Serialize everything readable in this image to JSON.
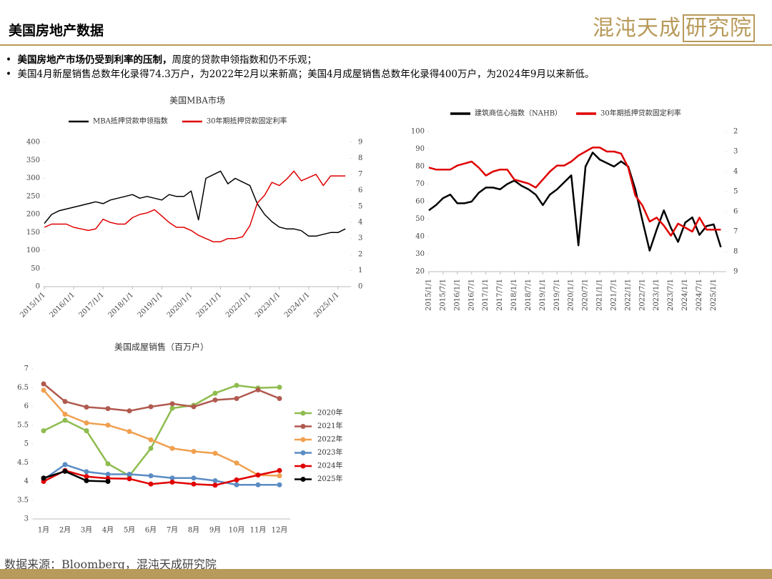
{
  "header": {
    "title": "美国房地产数据",
    "logo": "混沌天成",
    "logo_box": "研究院"
  },
  "bullets": [
    {
      "bold": "美国房地产市场仍受到利率的压制，",
      "text": "周度的贷款申领指数和仍不乐观；"
    },
    {
      "bold": "",
      "text": "美国4月新屋销售总数年化录得74.3万户，为2022年2月以来新高；美国4月成屋销售总数年化录得400万户，为2024年9月以来新低。"
    }
  ],
  "source": "数据来源：Bloomberg，混沌天成研究院",
  "chart_data": [
    {
      "type": "line",
      "title": "美国MBA市场",
      "x": [
        "2015/1/1",
        "2015/4/1",
        "2015/7/1",
        "2015/10/1",
        "2016/1/1",
        "2016/4/1",
        "2016/7/1",
        "2016/10/1",
        "2017/1/1",
        "2017/4/1",
        "2017/7/1",
        "2017/10/1",
        "2018/1/1",
        "2018/4/1",
        "2018/7/1",
        "2018/10/1",
        "2019/1/1",
        "2019/4/1",
        "2019/7/1",
        "2019/10/1",
        "2020/1/1",
        "2020/4/1",
        "2020/7/1",
        "2020/10/1",
        "2021/1/1",
        "2021/4/1",
        "2021/7/1",
        "2021/10/1",
        "2022/1/1",
        "2022/4/1",
        "2022/7/1",
        "2022/10/1",
        "2023/1/1",
        "2023/4/1",
        "2023/7/1",
        "2023/10/1",
        "2024/1/1",
        "2024/4/1",
        "2024/7/1",
        "2024/10/1",
        "2025/1/1",
        "2025/4/1"
      ],
      "xlim": [
        "2015/1/1",
        "2025/6/1"
      ],
      "xticks": [
        "2015/1/1",
        "2016/1/1",
        "2017/1/1",
        "2018/1/1",
        "2019/1/1",
        "2020/1/1",
        "2021/1/1",
        "2022/1/1",
        "2023/1/1",
        "2024/1/1",
        "2025/1/1"
      ],
      "ylim": [
        0,
        400
      ],
      "yticks": [
        0,
        50,
        100,
        150,
        200,
        250,
        300,
        350,
        400
      ],
      "y2lim": [
        0,
        9
      ],
      "y2ticks": [
        0,
        1,
        2,
        3,
        4,
        5,
        6,
        7,
        8,
        9
      ],
      "legend": "top",
      "series": [
        {
          "name": "MBA抵押贷款申领指数",
          "color": "#000000",
          "values": [
            175,
            200,
            210,
            215,
            220,
            225,
            230,
            235,
            230,
            240,
            245,
            250,
            255,
            245,
            250,
            245,
            240,
            255,
            250,
            250,
            265,
            185,
            300,
            310,
            320,
            285,
            300,
            290,
            280,
            230,
            200,
            180,
            165,
            160,
            160,
            155,
            140,
            140,
            145,
            150,
            150,
            160
          ]
        },
        {
          "name": "30年期抵押贷款固定利率",
          "color": "#e00000",
          "axis": "y2",
          "values": [
            3.7,
            3.9,
            3.9,
            3.9,
            3.7,
            3.6,
            3.5,
            3.6,
            4.2,
            4.0,
            3.9,
            3.9,
            4.3,
            4.5,
            4.6,
            4.8,
            4.4,
            4.0,
            3.7,
            3.7,
            3.5,
            3.2,
            3.0,
            2.8,
            2.8,
            3.0,
            3.0,
            3.1,
            3.8,
            5.2,
            5.7,
            6.5,
            6.3,
            6.7,
            7.2,
            6.6,
            6.8,
            7.0,
            6.3,
            6.9,
            6.9,
            6.9
          ]
        }
      ]
    },
    {
      "type": "line",
      "x": [
        "2015/1/1",
        "2015/4/1",
        "2015/7/1",
        "2015/10/1",
        "2016/1/1",
        "2016/4/1",
        "2016/7/1",
        "2016/10/1",
        "2017/1/1",
        "2017/4/1",
        "2017/7/1",
        "2017/10/1",
        "2018/1/1",
        "2018/4/1",
        "2018/7/1",
        "2018/10/1",
        "2019/1/1",
        "2019/4/1",
        "2019/7/1",
        "2019/10/1",
        "2020/1/1",
        "2020/4/1",
        "2020/7/1",
        "2020/10/1",
        "2021/1/1",
        "2021/4/1",
        "2021/7/1",
        "2021/10/1",
        "2022/1/1",
        "2022/4/1",
        "2022/7/1",
        "2022/10/1",
        "2023/1/1",
        "2023/4/1",
        "2023/7/1",
        "2023/10/1",
        "2024/1/1",
        "2024/4/1",
        "2024/7/1",
        "2024/10/1",
        "2025/1/1",
        "2025/4/1"
      ],
      "xlim": [
        "2015/1/1",
        "2025/6/1"
      ],
      "xticks": [
        "2015/1/1",
        "2015/7/1",
        "2016/1/1",
        "2016/7/1",
        "2017/1/1",
        "2017/7/1",
        "2018/1/1",
        "2018/7/1",
        "2019/1/1",
        "2019/7/1",
        "2020/1/1",
        "2020/7/1",
        "2021/1/1",
        "2021/7/1",
        "2022/1/1",
        "2022/7/1",
        "2023/1/1",
        "2023/7/1",
        "2024/1/1",
        "2024/7/1",
        "2025/1/1"
      ],
      "ylim": [
        20,
        100
      ],
      "yticks": [
        20,
        30,
        40,
        50,
        60,
        70,
        80,
        90,
        100
      ],
      "y2lim": [
        2,
        9
      ],
      "y2_reversed": true,
      "y2ticks": [
        2,
        3,
        4,
        5,
        6,
        7,
        8,
        9
      ],
      "legend": "top",
      "series": [
        {
          "name": "建筑商信心指数（NAHB）",
          "color": "#000000",
          "values": [
            55,
            58,
            62,
            64,
            59,
            59,
            60,
            65,
            68,
            68,
            67,
            70,
            72,
            69,
            67,
            64,
            58,
            64,
            67,
            71,
            75,
            35,
            80,
            88,
            84,
            82,
            80,
            83,
            80,
            67,
            49,
            32,
            44,
            55,
            45,
            37,
            48,
            51,
            41,
            46,
            47,
            34
          ]
        },
        {
          "name": "30年期抵押贷款固定利率",
          "color": "#e00000",
          "axis": "y2",
          "values": [
            3.8,
            3.9,
            3.9,
            3.9,
            3.7,
            3.6,
            3.5,
            3.8,
            4.2,
            4.0,
            3.9,
            3.9,
            4.4,
            4.5,
            4.6,
            4.8,
            4.4,
            4.0,
            3.7,
            3.7,
            3.5,
            3.2,
            3.0,
            2.8,
            2.8,
            3.0,
            3.0,
            3.1,
            3.8,
            5.2,
            5.7,
            6.5,
            6.3,
            6.7,
            7.2,
            6.6,
            6.8,
            7.0,
            6.3,
            6.9,
            6.9,
            6.9
          ]
        }
      ]
    },
    {
      "type": "line",
      "title": "美国成屋销售（百万户）",
      "categories": [
        "1月",
        "2月",
        "3月",
        "4月",
        "5月",
        "6月",
        "7月",
        "8月",
        "9月",
        "10月",
        "11月",
        "12月"
      ],
      "ylim": [
        3,
        7
      ],
      "yticks": [
        3,
        3.5,
        4,
        4.5,
        5,
        5.5,
        6,
        6.5,
        7
      ],
      "legend": "right",
      "markers": true,
      "series": [
        {
          "name": "2020年",
          "color": "#8fbc4f",
          "values": [
            5.35,
            5.63,
            5.35,
            4.47,
            4.15,
            4.88,
            5.95,
            6.03,
            6.35,
            6.56,
            6.49,
            6.51
          ]
        },
        {
          "name": "2021年",
          "color": "#b05a4f",
          "values": [
            6.6,
            6.13,
            5.98,
            5.94,
            5.88,
            5.99,
            6.07,
            5.99,
            6.17,
            6.21,
            6.44,
            6.21
          ]
        },
        {
          "name": "2022年",
          "color": "#f0a050",
          "values": [
            6.43,
            5.79,
            5.56,
            5.5,
            5.33,
            5.11,
            4.88,
            4.8,
            4.75,
            4.49,
            4.17,
            4.15
          ]
        },
        {
          "name": "2023年",
          "color": "#5b8cc4",
          "values": [
            4.05,
            4.45,
            4.26,
            4.19,
            4.19,
            4.15,
            4.09,
            4.09,
            4.02,
            3.91,
            3.91,
            3.91
          ]
        },
        {
          "name": "2024年",
          "color": "#e00000",
          "values": [
            4.0,
            4.29,
            4.13,
            4.08,
            4.07,
            3.93,
            3.98,
            3.93,
            3.9,
            4.04,
            4.17,
            4.29
          ]
        },
        {
          "name": "2025年",
          "color": "#000000",
          "values": [
            4.09,
            4.27,
            4.02,
            4.0,
            null,
            null,
            null,
            null,
            null,
            null,
            null,
            null
          ]
        }
      ]
    }
  ]
}
